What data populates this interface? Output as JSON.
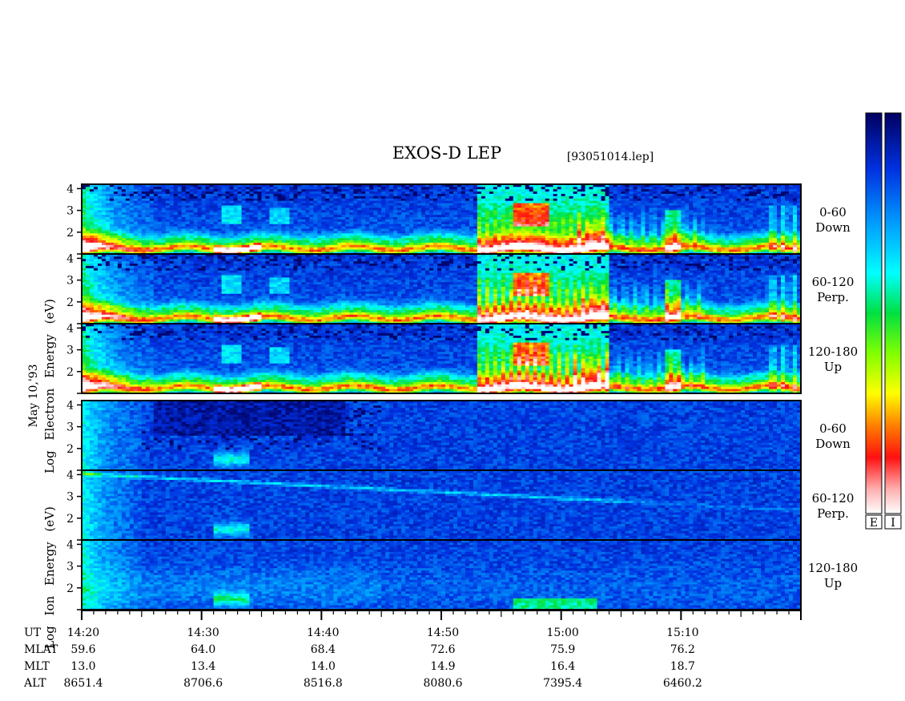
{
  "title": "EXOS-D LEP",
  "file_id": "[93051014.lep]",
  "date_label": "May 10,'93",
  "electron_ylabel": [
    "Log",
    "Electron",
    "Energy",
    "(eV)"
  ],
  "ion_ylabel": [
    "Log",
    "Ion",
    "Energy",
    "(eV)"
  ],
  "colorbar_labels": [
    "E",
    "I"
  ],
  "chart_data": {
    "type": "heatmap",
    "title": "EXOS-D LEP",
    "y_range_log_ev": [
      1,
      4.2
    ],
    "y_ticks": [
      2,
      3,
      4
    ],
    "x_range_minutes": [
      "14:20",
      "15:20"
    ],
    "panels": [
      {
        "species": "Electron",
        "angle": "0-60",
        "direction": "Down"
      },
      {
        "species": "Electron",
        "angle": "60-120",
        "direction": "Perp."
      },
      {
        "species": "Electron",
        "angle": "120-180",
        "direction": "Up"
      },
      {
        "species": "Ion",
        "angle": "0-60",
        "direction": "Down"
      },
      {
        "species": "Ion",
        "angle": "60-120",
        "direction": "Perp."
      },
      {
        "species": "Ion",
        "angle": "120-180",
        "direction": "Up"
      }
    ],
    "ephemeris": {
      "row_labels": [
        "UT",
        "MLAT",
        "MLT",
        "ALT"
      ],
      "columns": [
        {
          "UT": "14:20",
          "MLAT": "59.6",
          "MLT": "13.0",
          "ALT": "8651.4"
        },
        {
          "UT": "14:30",
          "MLAT": "64.0",
          "MLT": "13.4",
          "ALT": "8706.6"
        },
        {
          "UT": "14:40",
          "MLAT": "68.4",
          "MLT": "14.0",
          "ALT": "8516.8"
        },
        {
          "UT": "14:50",
          "MLAT": "72.6",
          "MLT": "14.9",
          "ALT": "8080.6"
        },
        {
          "UT": "15:00",
          "MLAT": "75.9",
          "MLT": "16.4",
          "ALT": "7395.4"
        },
        {
          "UT": "15:10",
          "MLAT": "76.2",
          "MLT": "18.7",
          "ALT": "6460.2"
        }
      ]
    }
  }
}
